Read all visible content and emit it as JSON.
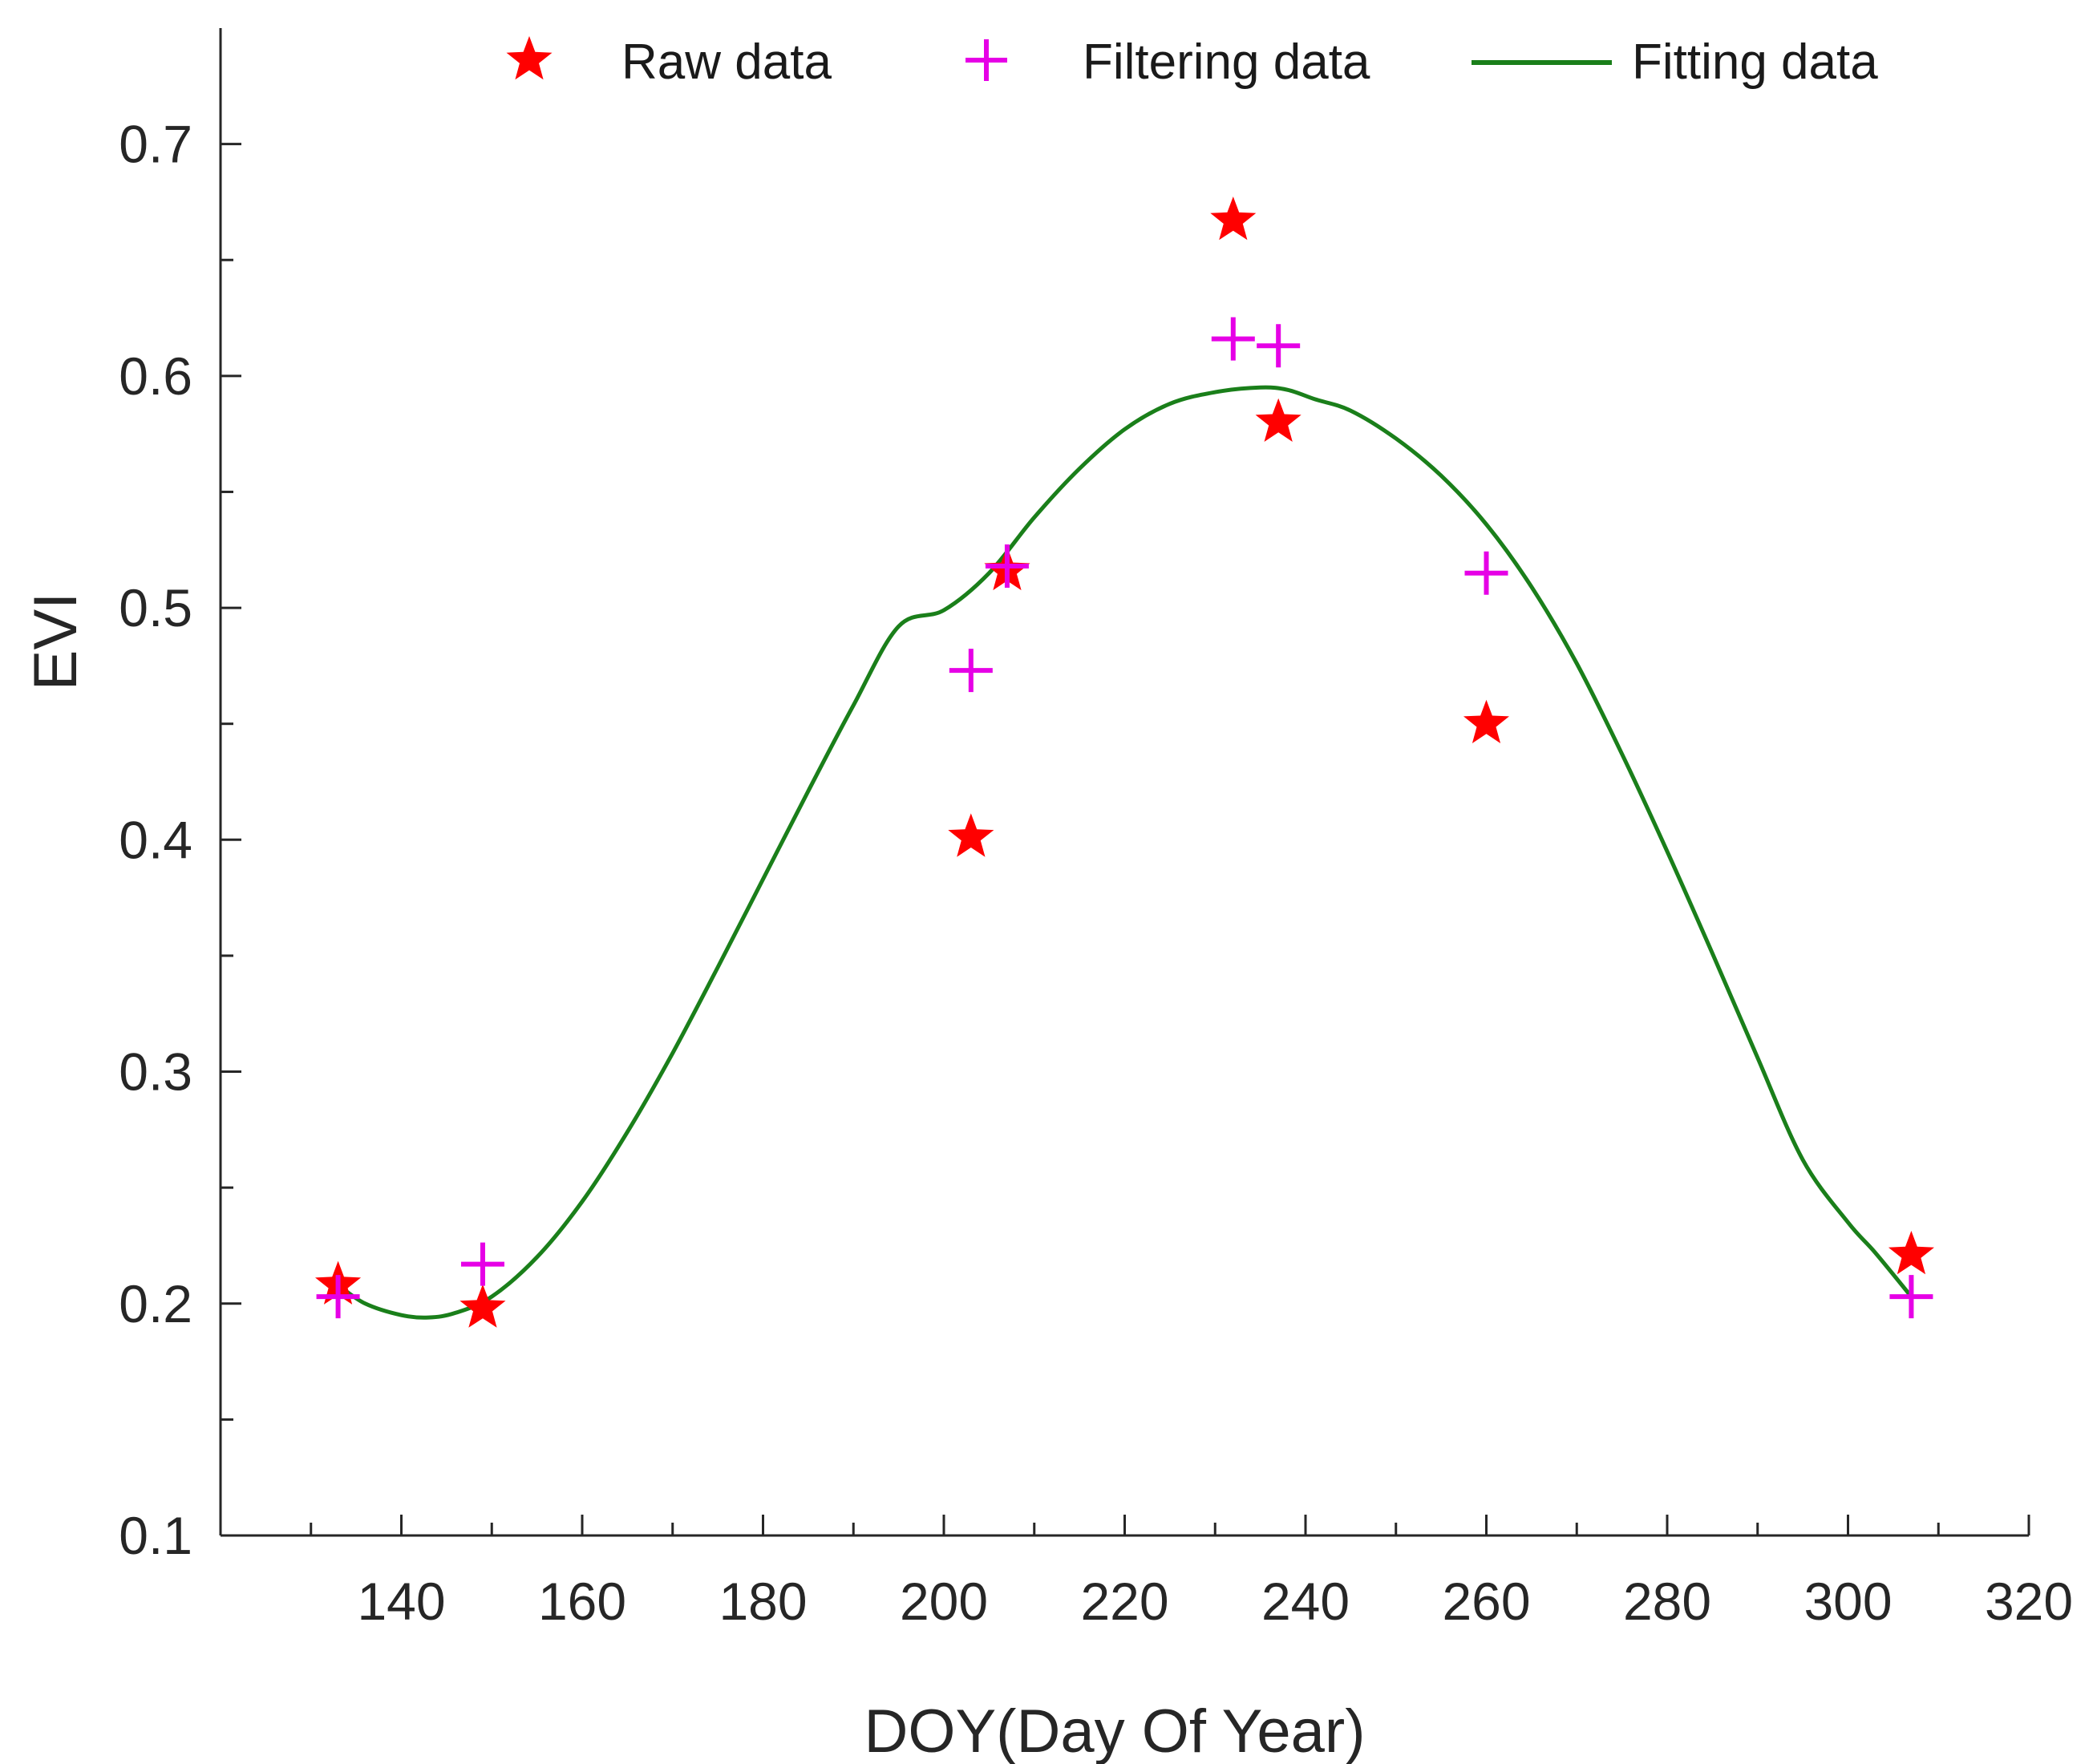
{
  "chart_data": {
    "type": "line",
    "xlabel": "DOY(Day Of Year)",
    "ylabel": "EVI",
    "xlim": [
      120,
      320
    ],
    "ylim": [
      0.1,
      0.75
    ],
    "x_ticks": [
      140,
      160,
      180,
      200,
      220,
      240,
      260,
      280,
      300,
      320
    ],
    "y_ticks": [
      0.1,
      0.2,
      0.3,
      0.4,
      0.5,
      0.6,
      0.7
    ],
    "x_tick_labels": [
      "140",
      "160",
      "180",
      "200",
      "220",
      "240",
      "260",
      "280",
      "300",
      "320"
    ],
    "y_tick_labels": [
      "0.1",
      "0.2",
      "0.3",
      "0.4",
      "0.5",
      "0.6",
      "0.7"
    ],
    "legend_position": "top",
    "colors": {
      "raw": "#ff0000",
      "filtering": "#e600e6",
      "fitting": "#1a7f1a",
      "axis": "#262626"
    },
    "series": [
      {
        "name": "Raw data",
        "marker": "star",
        "x": [
          133,
          149,
          203,
          207,
          232,
          237,
          260,
          307
        ],
        "y": [
          0.208,
          0.198,
          0.401,
          0.516,
          0.667,
          0.58,
          0.45,
          0.221
        ]
      },
      {
        "name": "Filtering data",
        "marker": "plus",
        "x": [
          133,
          149,
          203,
          207,
          232,
          237,
          260,
          307
        ],
        "y": [
          0.203,
          0.217,
          0.473,
          0.518,
          0.616,
          0.613,
          0.515,
          0.203
        ]
      },
      {
        "name": "Fitting data",
        "marker": "line",
        "x": [
          133,
          136,
          140,
          143,
          146,
          150,
          155,
          160,
          165,
          170,
          175,
          180,
          185,
          190,
          195,
          200,
          205,
          210,
          215,
          220,
          225,
          230,
          235,
          238,
          241,
          245,
          250,
          255,
          260,
          265,
          270,
          275,
          280,
          285,
          290,
          295,
          300,
          303,
          307
        ],
        "y": [
          0.208,
          0.2,
          0.195,
          0.194,
          0.196,
          0.203,
          0.22,
          0.244,
          0.274,
          0.308,
          0.345,
          0.383,
          0.421,
          0.458,
          0.492,
          0.499,
          0.515,
          0.539,
          0.56,
          0.577,
          0.588,
          0.593,
          0.595,
          0.594,
          0.59,
          0.585,
          0.573,
          0.557,
          0.536,
          0.509,
          0.476,
          0.437,
          0.395,
          0.351,
          0.306,
          0.262,
          0.235,
          0.222,
          0.203
        ]
      }
    ]
  }
}
